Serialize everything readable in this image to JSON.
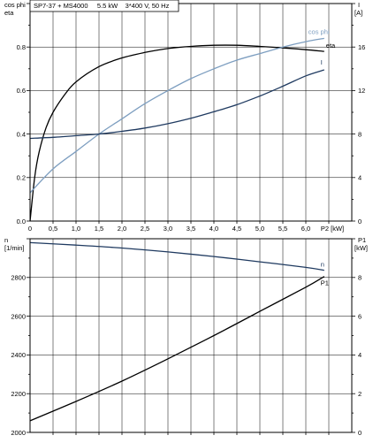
{
  "header": {
    "title": "SP7-37 + MS4000     5.5 kW    3*400 V, 50 Hz"
  },
  "colors": {
    "dark_curve": "#1f3a60",
    "light_curve": "#7d9ec0",
    "black_curve": "#000000"
  },
  "chart_data": [
    {
      "type": "line",
      "id": "top",
      "x_tick_labels": [
        "0",
        "0,5",
        "1,0",
        "1,5",
        "2,0",
        "2,5",
        "3,0",
        "3,5",
        "4,0",
        "4,5",
        "5,0",
        "5,5",
        "6,0"
      ],
      "x_unit_label": "P2 [kW]",
      "xlim": [
        0,
        7.0
      ],
      "left_axis": {
        "label_lines": [
          "cos phi",
          "eta"
        ],
        "tick_labels": [
          "0.0",
          "0.2",
          "0.4",
          "0.6",
          "0.8"
        ],
        "ylim": [
          0,
          1.0
        ]
      },
      "right_axis": {
        "label_lines": [
          "I",
          "[A]"
        ],
        "tick_labels": [
          "0",
          "4",
          "8",
          "12",
          "16"
        ],
        "ylim": [
          0,
          20
        ]
      },
      "grid": true,
      "series": [
        {
          "name": "eta",
          "axis": "left",
          "color": "black_curve",
          "x": [
            0,
            0.1,
            0.2,
            0.35,
            0.5,
            0.75,
            1.0,
            1.5,
            2.0,
            2.5,
            3.0,
            3.5,
            4.0,
            4.5,
            5.0,
            5.5,
            6.0,
            6.4
          ],
          "y": [
            0,
            0.2,
            0.32,
            0.43,
            0.5,
            0.58,
            0.64,
            0.71,
            0.75,
            0.775,
            0.793,
            0.803,
            0.808,
            0.808,
            0.803,
            0.796,
            0.788,
            0.78
          ]
        },
        {
          "name": "cos phi",
          "axis": "left",
          "color": "light_curve",
          "x": [
            0,
            0.5,
            1.0,
            1.5,
            2.0,
            2.5,
            3.0,
            3.5,
            4.0,
            4.5,
            5.0,
            5.5,
            6.0,
            6.4
          ],
          "y": [
            0.13,
            0.24,
            0.32,
            0.4,
            0.47,
            0.54,
            0.6,
            0.655,
            0.7,
            0.74,
            0.77,
            0.8,
            0.825,
            0.84
          ]
        },
        {
          "name": "I",
          "axis": "right",
          "color": "dark_curve",
          "x": [
            0,
            0.5,
            1.0,
            1.5,
            2.0,
            2.5,
            3.0,
            3.5,
            4.0,
            4.5,
            5.0,
            5.5,
            6.0,
            6.4
          ],
          "y": [
            7.6,
            7.7,
            7.85,
            8.0,
            8.25,
            8.55,
            8.95,
            9.45,
            10.05,
            10.7,
            11.5,
            12.4,
            13.35,
            13.9
          ]
        }
      ]
    },
    {
      "type": "line",
      "id": "bottom",
      "xlim": [
        0,
        7.0
      ],
      "left_axis": {
        "label_lines": [
          "n",
          "[1/min]"
        ],
        "tick_labels": [
          "2000",
          "2200",
          "2400",
          "2600",
          "2800"
        ],
        "ylim": [
          2000,
          3000
        ]
      },
      "right_axis": {
        "label_lines": [
          "P1",
          "[kW]"
        ],
        "tick_labels": [
          "0",
          "2",
          "4",
          "6",
          "8"
        ],
        "ylim": [
          0,
          10
        ]
      },
      "grid": true,
      "series": [
        {
          "name": "n",
          "axis": "left",
          "color": "dark_curve",
          "x": [
            0,
            1.0,
            2.0,
            3.0,
            4.0,
            5.0,
            6.0,
            6.4
          ],
          "y": [
            2980,
            2967,
            2952,
            2932,
            2908,
            2881,
            2852,
            2837
          ]
        },
        {
          "name": "P1",
          "axis": "right",
          "color": "black_curve",
          "x": [
            0,
            1.0,
            2.0,
            3.0,
            4.0,
            5.0,
            6.0,
            6.4
          ],
          "y": [
            0.6,
            1.6,
            2.65,
            3.8,
            5.0,
            6.25,
            7.5,
            8.05
          ]
        }
      ]
    }
  ]
}
